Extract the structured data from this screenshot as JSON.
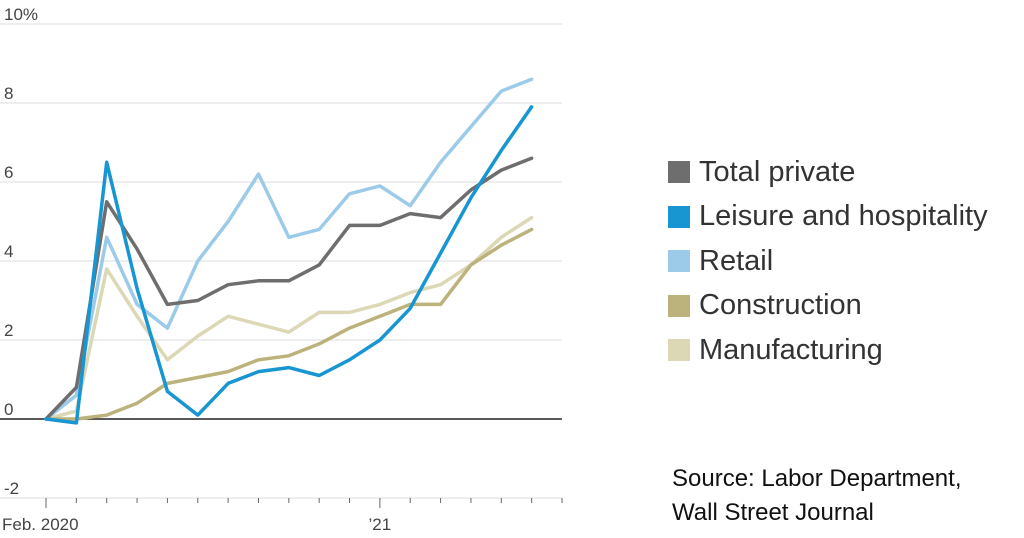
{
  "chart_data": {
    "type": "line",
    "x": [
      "2020-02",
      "2020-03",
      "2020-04",
      "2020-05",
      "2020-06",
      "2020-07",
      "2020-08",
      "2020-09",
      "2020-10",
      "2020-11",
      "2020-12",
      "2021-01",
      "2021-02",
      "2021-03",
      "2021-04",
      "2021-05",
      "2021-06",
      "2021-07"
    ],
    "x_tick_labels": [
      {
        "x": "2020-02",
        "label": "Feb. 2020"
      },
      {
        "x": "2021-01",
        "label": "’21"
      }
    ],
    "y_ticks": [
      {
        "value": -2,
        "label": "-2"
      },
      {
        "value": 0,
        "label": "0"
      },
      {
        "value": 2,
        "label": "2"
      },
      {
        "value": 4,
        "label": "4"
      },
      {
        "value": 6,
        "label": "6"
      },
      {
        "value": 8,
        "label": "8"
      },
      {
        "value": 10,
        "label": "10%"
      }
    ],
    "ylim": [
      -2,
      10
    ],
    "grid": true,
    "legend_position": "right",
    "series": [
      {
        "name": "Total private",
        "color": "#6e6e6e",
        "values": [
          0,
          0.8,
          5.5,
          4.3,
          2.9,
          3.0,
          3.4,
          3.5,
          3.5,
          3.9,
          4.9,
          4.9,
          5.2,
          5.1,
          5.8,
          6.3,
          6.6,
          null
        ]
      },
      {
        "name": "Leisure and hospitality",
        "color": "#1796d2",
        "values": [
          0,
          -0.1,
          6.5,
          3.3,
          0.7,
          0.1,
          0.9,
          1.2,
          1.3,
          1.1,
          1.5,
          2.0,
          2.8,
          4.2,
          5.6,
          6.8,
          7.9,
          null
        ]
      },
      {
        "name": "Retail",
        "color": "#9ccbea",
        "values": [
          0,
          0.6,
          4.6,
          2.9,
          2.3,
          4.0,
          5.0,
          6.2,
          4.6,
          4.8,
          5.7,
          5.9,
          5.4,
          6.5,
          7.4,
          8.3,
          8.6,
          null
        ]
      },
      {
        "name": "Construction",
        "color": "#bcb37c",
        "values": [
          0,
          0.0,
          0.1,
          0.4,
          0.9,
          1.05,
          1.2,
          1.5,
          1.6,
          1.9,
          2.3,
          2.6,
          2.9,
          2.9,
          3.9,
          4.4,
          4.8,
          null
        ]
      },
      {
        "name": "Manufacturing",
        "color": "#dcd8b6",
        "values": [
          0,
          0.2,
          3.8,
          2.6,
          1.5,
          2.1,
          2.6,
          2.4,
          2.2,
          2.7,
          2.7,
          2.9,
          3.2,
          3.4,
          3.9,
          4.6,
          5.1,
          null
        ]
      }
    ]
  },
  "legend": {
    "items": [
      {
        "label": "Total private",
        "color": "#6e6e6e"
      },
      {
        "label": "Leisure and hospitality",
        "color": "#1796d2"
      },
      {
        "label": "Retail",
        "color": "#9ccbea"
      },
      {
        "label": "Construction",
        "color": "#bcb37c"
      },
      {
        "label": "Manufacturing",
        "color": "#dcd8b6"
      }
    ]
  },
  "source": {
    "line1": "Source: Labor Department,",
    "line2": "Wall Street Journal"
  }
}
